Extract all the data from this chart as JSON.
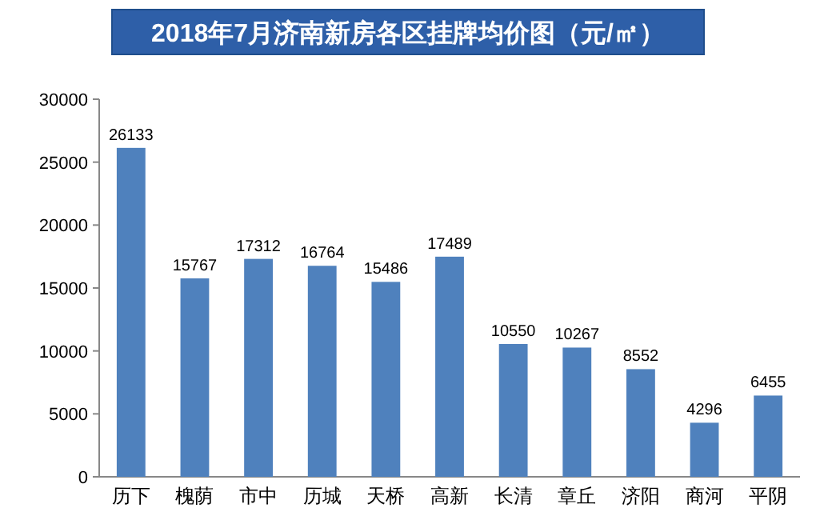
{
  "chart_data": {
    "type": "bar",
    "title": "2018年7月济南新房各区挂牌均价图（元/㎡）",
    "categories": [
      "历下",
      "槐荫",
      "市中",
      "历城",
      "天桥",
      "高新",
      "长清",
      "章丘",
      "济阳",
      "商河",
      "平阴"
    ],
    "values": [
      26133,
      15767,
      17312,
      16764,
      15486,
      17489,
      10550,
      10267,
      8552,
      4296,
      6455
    ],
    "color": "#4f81bd",
    "ylim": [
      0,
      30000
    ],
    "yticks": [
      0,
      5000,
      10000,
      15000,
      20000,
      25000,
      30000
    ],
    "data_labels": true,
    "grid": false
  }
}
